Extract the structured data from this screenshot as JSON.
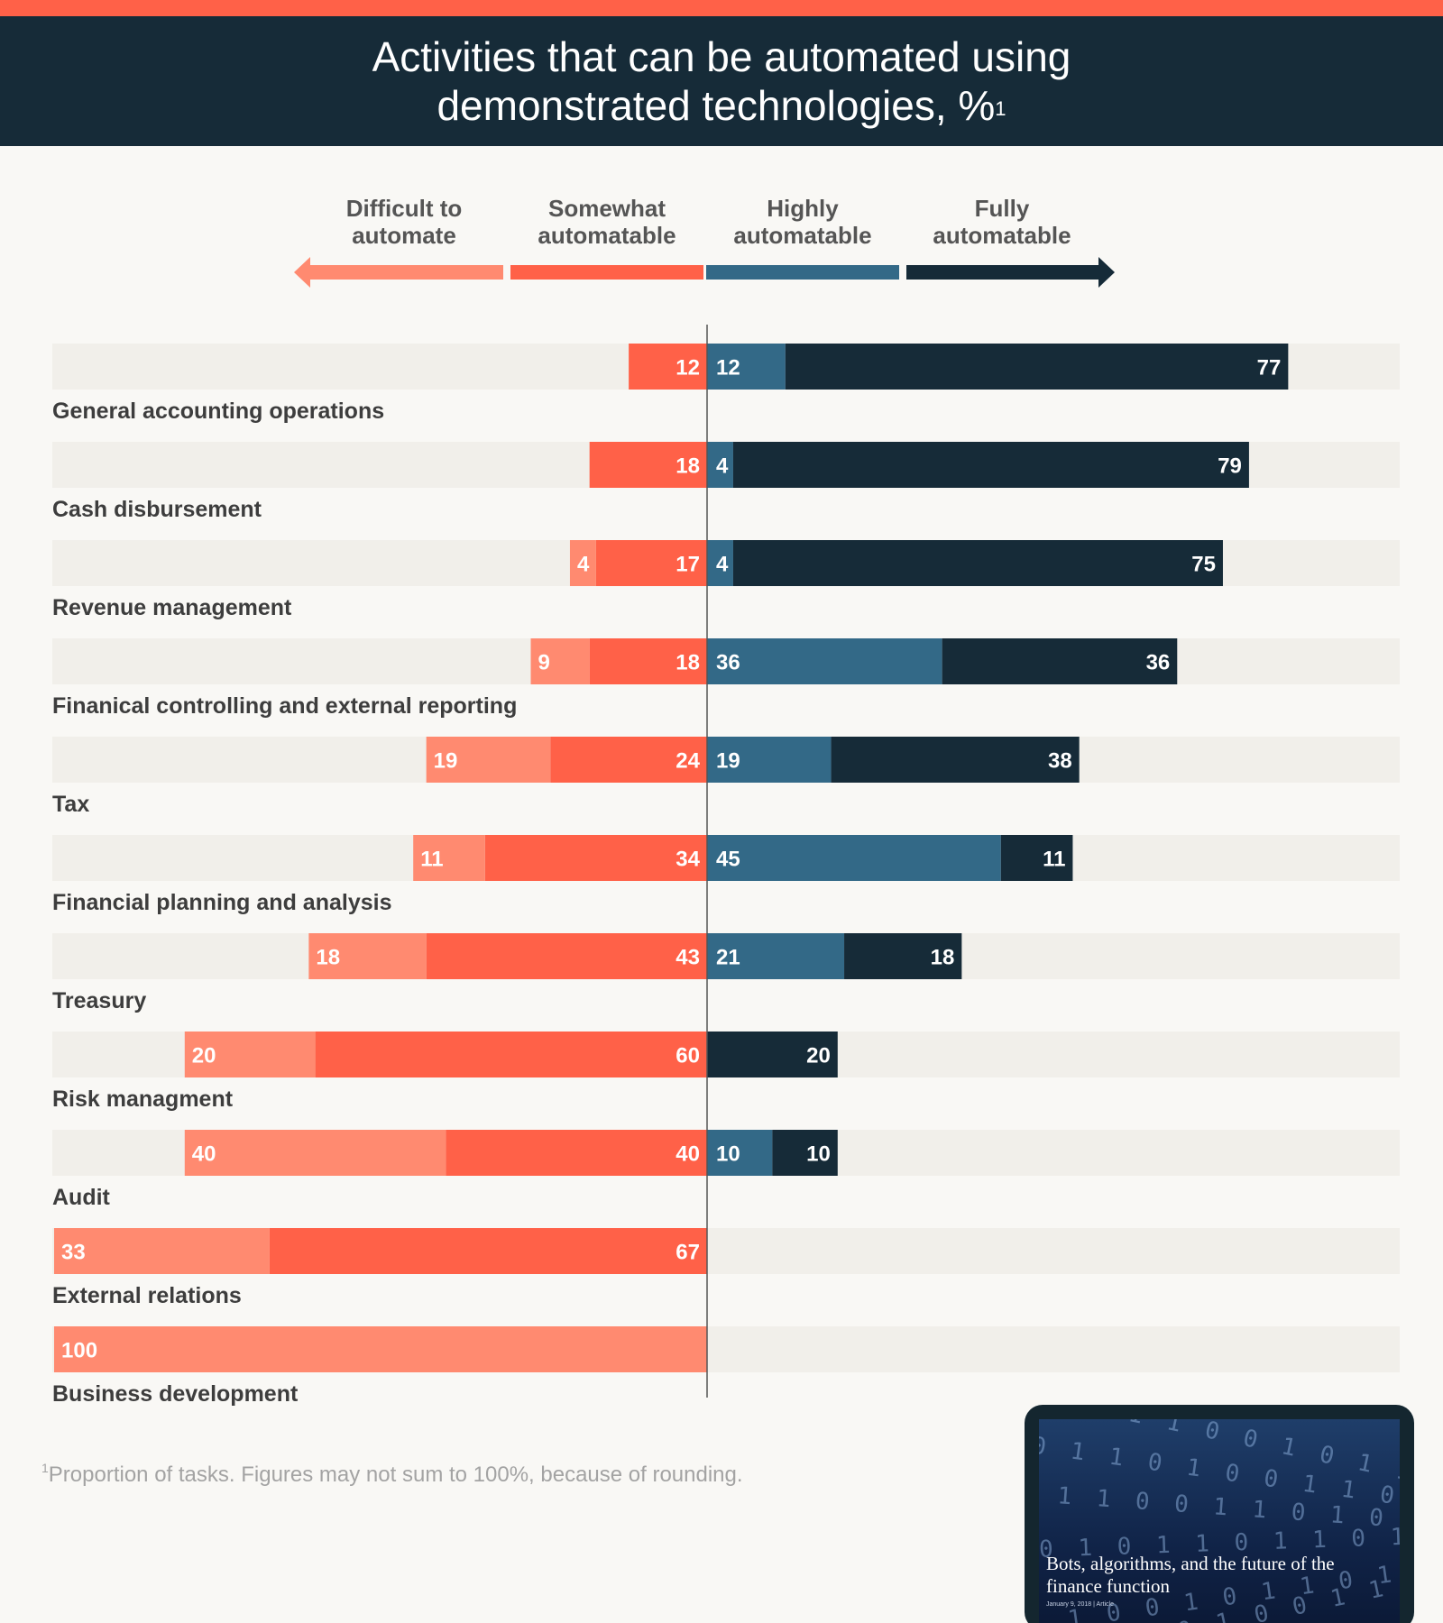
{
  "colors": {
    "accent_stripe": "#ff6148",
    "header_bg": "#162b38",
    "difficult": "#ff8a70",
    "somewhat": "#ff6148",
    "highly": "#336987",
    "fully": "#162b38",
    "track": "#f1efea",
    "axis": "#555555",
    "label_text": "#3d3d3d",
    "value_text": "#ffffff"
  },
  "header": {
    "title_line1": "Activities that can be automated using",
    "title_line2": "demonstrated technologies, %",
    "title_sup": "1"
  },
  "legend": {
    "difficult": "Difficult to automate",
    "somewhat": "Somewhat automatable",
    "highly": "Highly automatable",
    "fully": "Fully automatable"
  },
  "footnote": {
    "marker": "1",
    "text": "Proportion of tasks. Figures may not sum to 100%, because of rounding."
  },
  "card": {
    "title": "Bots, algorithms, and the future of the finance function",
    "meta": "January 9, 2018 | Article"
  },
  "chart_data": {
    "type": "bar",
    "orientation": "horizontal",
    "layout": "diverging-stacked",
    "unit": "%",
    "categories": [
      "General accounting operations",
      "Cash disbursement",
      "Revenue management",
      "Finanical controlling and external reporting",
      "Tax",
      "Financial planning and analysis",
      "Treasury",
      "Risk managment",
      "Audit",
      "External relations",
      "Business development"
    ],
    "series": [
      {
        "name": "Difficult to automate",
        "direction": "left",
        "values": [
          0,
          0,
          4,
          9,
          19,
          11,
          18,
          20,
          40,
          33,
          100
        ]
      },
      {
        "name": "Somewhat automatable",
        "direction": "left",
        "values": [
          12,
          18,
          17,
          18,
          24,
          34,
          43,
          60,
          40,
          67,
          0
        ]
      },
      {
        "name": "Highly automatable",
        "direction": "right",
        "values": [
          12,
          4,
          4,
          36,
          19,
          45,
          21,
          0,
          10,
          0,
          0
        ]
      },
      {
        "name": "Fully automatable",
        "direction": "right",
        "values": [
          77,
          79,
          75,
          36,
          38,
          11,
          18,
          20,
          10,
          0,
          0
        ]
      }
    ],
    "xlim": [
      -100,
      100
    ],
    "grid": false,
    "legend_position": "top"
  }
}
